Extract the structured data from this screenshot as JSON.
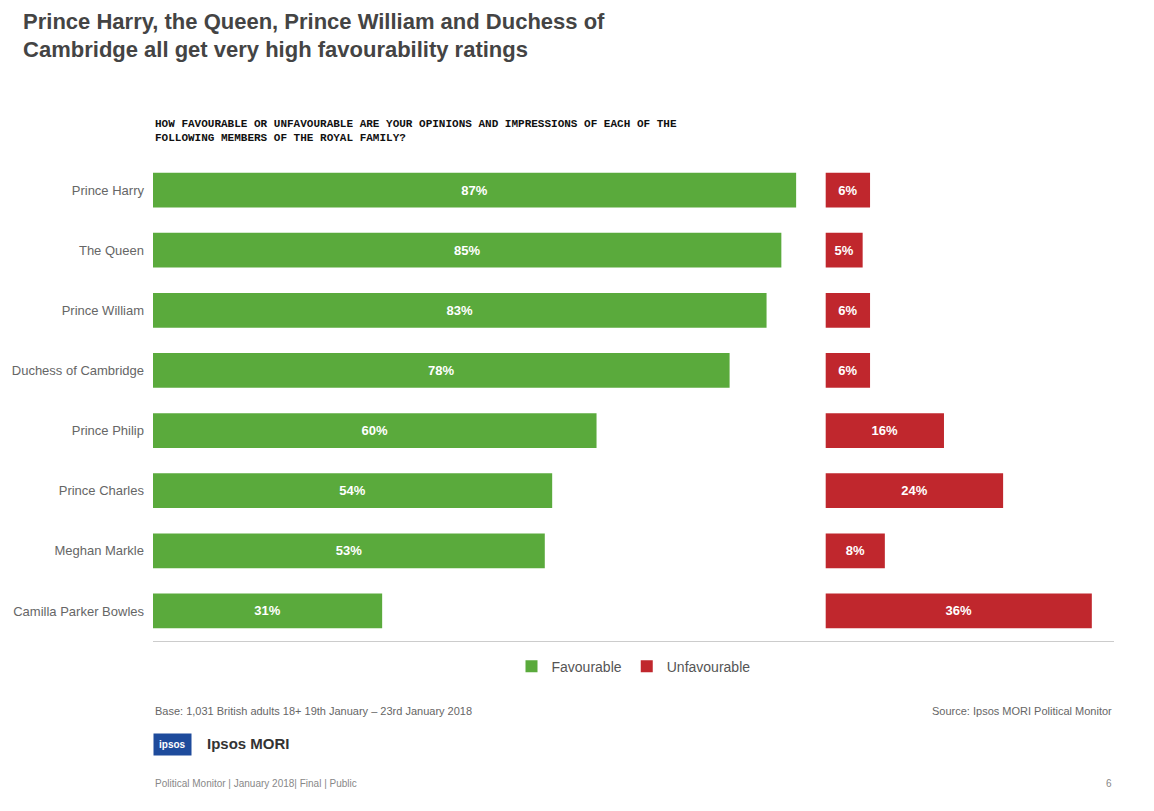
{
  "chart_data": {
    "type": "bar",
    "orientation": "horizontal",
    "title": "Prince Harry, the Queen, Prince William and Duchess of\nCambridge all get very high favourability ratings",
    "subtitle": "HOW FAVOURABLE OR UNFAVOURABLE ARE YOUR OPINIONS AND IMPRESSIONS OF EACH OF THE\nFOLLOWING MEMBERS OF THE ROYAL FAMILY?",
    "categories": [
      "Prince Harry",
      "The Queen",
      "Prince William",
      "Duchess of Cambridge",
      "Prince Philip",
      "Prince Charles",
      "Meghan Markle",
      "Camilla Parker Bowles"
    ],
    "series": [
      {
        "name": "Favourable",
        "color": "#5aaa3c",
        "values": [
          87,
          85,
          83,
          78,
          60,
          54,
          53,
          31
        ],
        "value_labels": [
          "87%",
          "85%",
          "83%",
          "78%",
          "60%",
          "54%",
          "53%",
          "31%"
        ]
      },
      {
        "name": "Unfavourable",
        "color": "#c0272d",
        "base": 91,
        "values": [
          6,
          5,
          6,
          6,
          16,
          24,
          8,
          36
        ],
        "value_labels": [
          "6%",
          "5%",
          "6%",
          "6%",
          "16%",
          "24%",
          "8%",
          "36%"
        ]
      }
    ],
    "xlim": [
      0,
      130
    ],
    "data_labels": true,
    "tick_labels": "y",
    "grid": false,
    "legend": "bottom",
    "annotations": [
      "Base: 1,031 British adults 18+ 19th January – 23rd January 2018",
      "Source: Ipsos MORI Political Monitor",
      "ipsos",
      "Ipsos MORI",
      "Political Monitor | January 2018| Final | Public",
      "6"
    ]
  }
}
